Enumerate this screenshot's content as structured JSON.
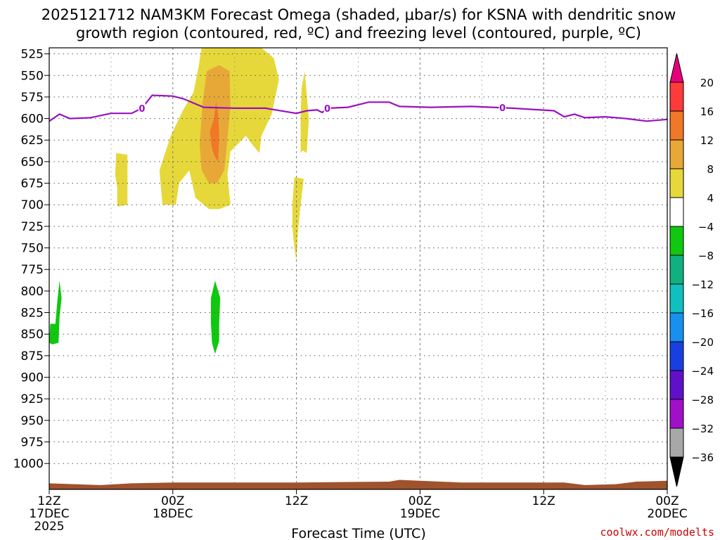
{
  "chart_data": {
    "type": "heatmap",
    "title_line1": "2025121712 NAM3KM Forecast Omega (shaded, μbar/s) for KSNA with dendritic snow",
    "title_line2": "growth region (contoured, red, ºC) and freezing level (contoured, purple, ºC)",
    "xlabel": "Forecast Time (UTC)",
    "x_ticks": [
      {
        "hour": 0,
        "lines": [
          "12Z",
          "17DEC",
          "2025"
        ]
      },
      {
        "hour": 12,
        "lines": [
          "00Z",
          "18DEC"
        ]
      },
      {
        "hour": 24,
        "lines": [
          "12Z"
        ]
      },
      {
        "hour": 36,
        "lines": [
          "00Z",
          "19DEC"
        ]
      },
      {
        "hour": 48,
        "lines": [
          "12Z"
        ]
      },
      {
        "hour": 60,
        "lines": [
          "00Z",
          "20DEC"
        ]
      }
    ],
    "xlim_hours": [
      0,
      60
    ],
    "y_ticks": [
      "525",
      "550",
      "575",
      "600",
      "625",
      "650",
      "675",
      "700",
      "725",
      "750",
      "775",
      "800",
      "825",
      "850",
      "875",
      "900",
      "925",
      "950",
      "975",
      "1000"
    ],
    "ylim_hpa": [
      518,
      1030
    ],
    "grid": true,
    "colorbar": {
      "labels": [
        "20",
        "16",
        "12",
        "8",
        "4",
        "−4",
        "−8",
        "−12",
        "−16",
        "−20",
        "−24",
        "−28",
        "−32",
        "−36"
      ],
      "colors": [
        "#e8007a",
        "#ff3a3a",
        "#f07828",
        "#e8a838",
        "#e6d83a",
        "#ffffff",
        "#10c810",
        "#10b080",
        "#10c0c0",
        "#1890f0",
        "#1840e0",
        "#6010c8",
        "#a010c8",
        "#a8a8a8",
        "#000000"
      ]
    },
    "freezing_level": {
      "label": "0",
      "points": [
        [
          0,
          603
        ],
        [
          1,
          595
        ],
        [
          2,
          600
        ],
        [
          4,
          599
        ],
        [
          6,
          594
        ],
        [
          8,
          594
        ],
        [
          9,
          588
        ],
        [
          10,
          573
        ],
        [
          12,
          574
        ],
        [
          13,
          577
        ],
        [
          15,
          587
        ],
        [
          18,
          588
        ],
        [
          21,
          588
        ],
        [
          23,
          592
        ],
        [
          24,
          594
        ],
        [
          25,
          591
        ],
        [
          26,
          590
        ],
        [
          26.5,
          593
        ],
        [
          27,
          588
        ],
        [
          29,
          587
        ],
        [
          31,
          581
        ],
        [
          33,
          581
        ],
        [
          34,
          586
        ],
        [
          37,
          587
        ],
        [
          41,
          586
        ],
        [
          45,
          588
        ],
        [
          49,
          591
        ],
        [
          50,
          598
        ],
        [
          51,
          595
        ],
        [
          52,
          599
        ],
        [
          54,
          598
        ],
        [
          56,
          600
        ],
        [
          58,
          603
        ],
        [
          60,
          601
        ]
      ],
      "label_hours": [
        9,
        27,
        44
      ]
    },
    "omega_regions": [
      {
        "value_range": "4 to 8",
        "color": "#e6d83a",
        "points": [
          [
            11,
            700
          ],
          [
            10.7,
            660
          ],
          [
            11.8,
            620
          ],
          [
            13,
            590
          ],
          [
            14,
            570
          ],
          [
            14.5,
            540
          ],
          [
            14.8,
            518
          ],
          [
            20.6,
            518
          ],
          [
            21.8,
            530
          ],
          [
            22.3,
            555
          ],
          [
            21.6,
            595
          ],
          [
            20.6,
            620
          ],
          [
            20.4,
            640
          ],
          [
            19.7,
            630
          ],
          [
            19.1,
            620
          ],
          [
            17.6,
            638
          ],
          [
            17.3,
            665
          ],
          [
            17.6,
            700
          ],
          [
            16.5,
            705
          ],
          [
            15.5,
            705
          ],
          [
            14.2,
            692
          ],
          [
            13.6,
            660
          ],
          [
            12.6,
            675
          ],
          [
            12.3,
            700
          ]
        ]
      },
      {
        "value_range": "8 to 12",
        "color": "#e8a838",
        "points": [
          [
            14.6,
            630
          ],
          [
            14.9,
            580
          ],
          [
            15.3,
            545
          ],
          [
            16.5,
            538
          ],
          [
            17.5,
            545
          ],
          [
            17.6,
            585
          ],
          [
            17.3,
            625
          ],
          [
            17.0,
            660
          ],
          [
            16.3,
            675
          ],
          [
            15.5,
            675
          ],
          [
            14.8,
            660
          ]
        ]
      },
      {
        "value_range": "12 to 16",
        "color": "#f07828",
        "points": [
          [
            15.6,
            615
          ],
          [
            16.0,
            600
          ],
          [
            16.2,
            580
          ],
          [
            16.4,
            595
          ],
          [
            16.5,
            620
          ],
          [
            16.4,
            650
          ],
          [
            16.1,
            645
          ],
          [
            15.8,
            635
          ]
        ]
      },
      {
        "value_range": "4 to 8",
        "color": "#e6d83a",
        "points": [
          [
            6.5,
            640
          ],
          [
            7.6,
            642
          ],
          [
            7.6,
            700
          ],
          [
            6.6,
            702
          ],
          [
            6.6,
            680
          ],
          [
            6.4,
            665
          ]
        ]
      },
      {
        "value_range": "4 to 8",
        "color": "#e6d83a",
        "points": [
          [
            24.4,
            640
          ],
          [
            24.4,
            600
          ],
          [
            24.5,
            565
          ],
          [
            24.8,
            545
          ],
          [
            25.2,
            600
          ],
          [
            25.0,
            640
          ],
          [
            24.6,
            637
          ]
        ]
      },
      {
        "value_range": "4 to 8",
        "color": "#e6d83a",
        "points": [
          [
            23.6,
            700
          ],
          [
            23.8,
            668
          ],
          [
            24.7,
            670
          ],
          [
            24.4,
            700
          ],
          [
            24.2,
            725
          ],
          [
            24.1,
            740
          ],
          [
            24.0,
            765
          ],
          [
            23.8,
            750
          ],
          [
            23.6,
            725
          ]
        ]
      },
      {
        "value_range": "-4 to -8",
        "color": "#10c810",
        "points": [
          [
            0,
            860
          ],
          [
            0.1,
            838
          ],
          [
            0.6,
            838
          ],
          [
            0.8,
            810
          ],
          [
            1.0,
            788
          ],
          [
            1.2,
            808
          ],
          [
            1.0,
            830
          ],
          [
            0.9,
            860
          ],
          [
            0.3,
            862
          ]
        ]
      },
      {
        "value_range": "-4 to -8",
        "color": "#10c810",
        "points": [
          [
            15.7,
            838
          ],
          [
            15.7,
            808
          ],
          [
            16.1,
            788
          ],
          [
            16.6,
            808
          ],
          [
            16.5,
            838
          ],
          [
            16.5,
            858
          ],
          [
            16.1,
            873
          ],
          [
            15.8,
            860
          ]
        ]
      }
    ],
    "ground": {
      "color": "#a0522d",
      "points": [
        [
          0,
          1023
        ],
        [
          5,
          1025
        ],
        [
          8,
          1023
        ],
        [
          12,
          1022
        ],
        [
          24,
          1022
        ],
        [
          33,
          1021
        ],
        [
          34,
          1019
        ],
        [
          36,
          1020
        ],
        [
          40,
          1022
        ],
        [
          50,
          1022
        ],
        [
          52,
          1025
        ],
        [
          55,
          1024
        ],
        [
          57,
          1021
        ],
        [
          60,
          1020
        ]
      ]
    },
    "credit": "coolwx.com/modelts"
  }
}
